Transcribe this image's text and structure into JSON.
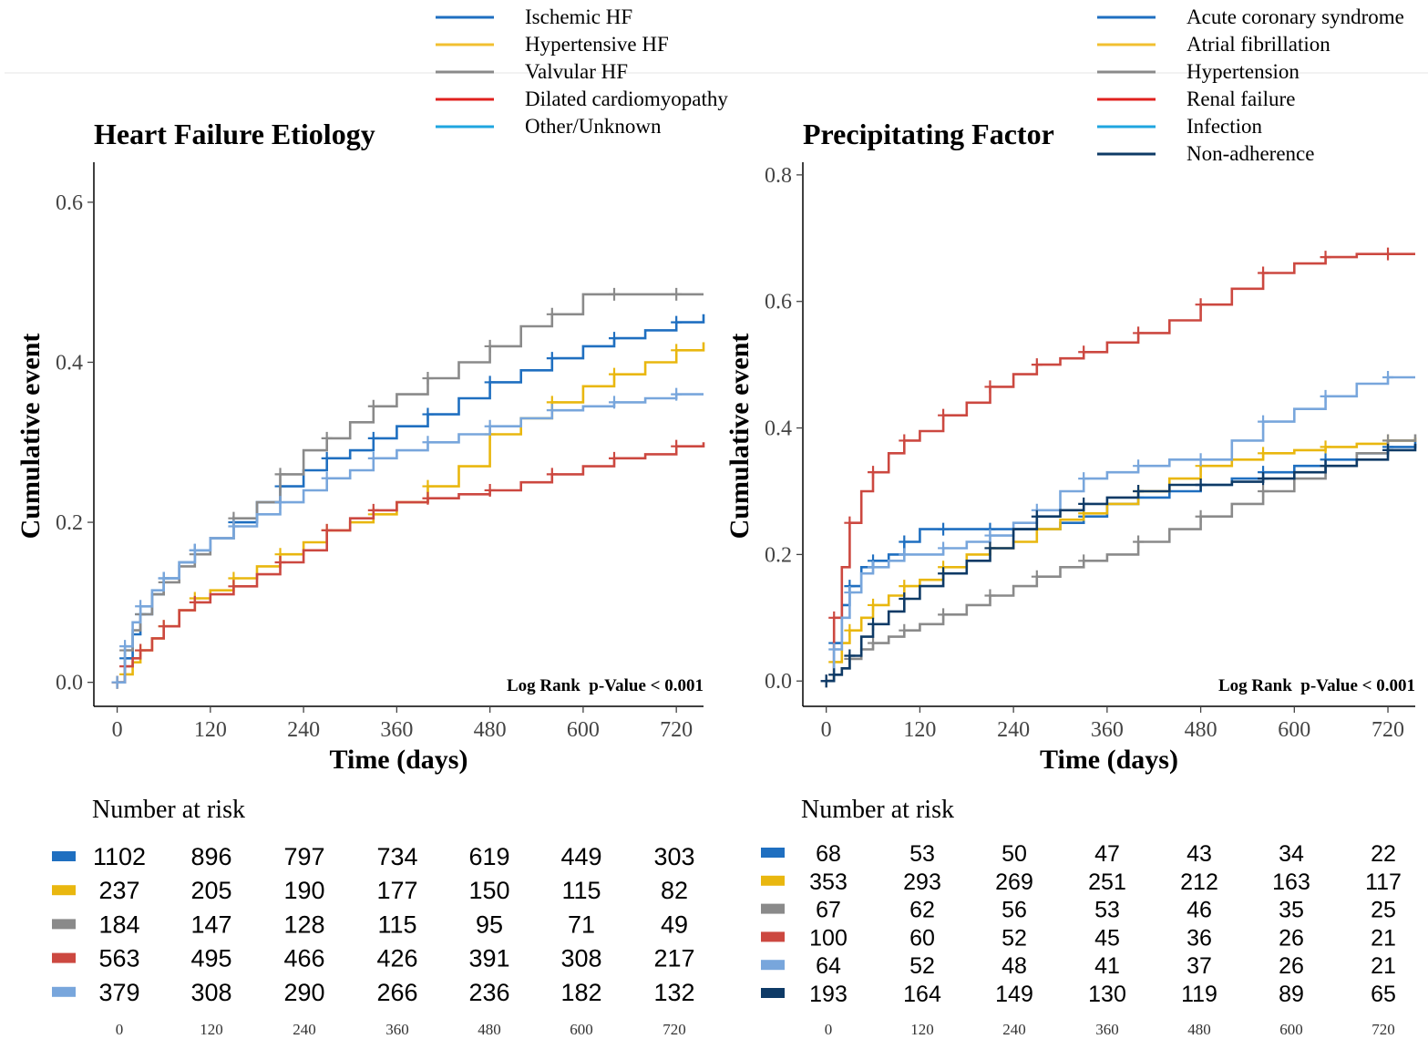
{
  "chart_data": [
    {
      "type": "line",
      "title": "Heart Failure Etiology",
      "xlabel": "Time (days)",
      "ylabel": "Cumulative event",
      "xlim": [
        -30,
        755
      ],
      "ylim": [
        -0.03,
        0.65
      ],
      "x_ticks": [
        0,
        120,
        240,
        360,
        480,
        600,
        720
      ],
      "x_tick_labels": [
        "0",
        "120",
        "240",
        "360",
        "480",
        "600",
        "720"
      ],
      "y_ticks": [
        0.0,
        0.2,
        0.4,
        0.6
      ],
      "y_tick_labels": [
        "0.0",
        "0.2",
        "0.4",
        "0.6"
      ],
      "annotation": "Log Rank  p-Value < 0.001",
      "legend_position": "top",
      "series": [
        {
          "name": "Ischemic HF",
          "color": "#1f6fc0",
          "legend_color": "#1f6fc0",
          "x": [
            0,
            10,
            20,
            30,
            45,
            60,
            80,
            100,
            120,
            150,
            180,
            210,
            240,
            270,
            300,
            330,
            360,
            400,
            440,
            480,
            520,
            560,
            600,
            640,
            680,
            720,
            755
          ],
          "y": [
            0,
            0.03,
            0.06,
            0.085,
            0.11,
            0.13,
            0.15,
            0.165,
            0.18,
            0.2,
            0.225,
            0.245,
            0.265,
            0.28,
            0.29,
            0.305,
            0.32,
            0.335,
            0.355,
            0.375,
            0.39,
            0.405,
            0.42,
            0.43,
            0.44,
            0.45,
            0.46
          ]
        },
        {
          "name": "Hypertensive HF",
          "color": "#e9b70f",
          "legend_color": "#f2c030",
          "x": [
            0,
            10,
            20,
            30,
            45,
            60,
            80,
            100,
            120,
            150,
            180,
            210,
            240,
            270,
            300,
            330,
            360,
            400,
            440,
            480,
            520,
            560,
            600,
            640,
            680,
            720,
            755
          ],
          "y": [
            0,
            0.01,
            0.025,
            0.04,
            0.055,
            0.07,
            0.09,
            0.105,
            0.115,
            0.13,
            0.145,
            0.16,
            0.175,
            0.19,
            0.2,
            0.21,
            0.225,
            0.245,
            0.27,
            0.31,
            0.33,
            0.35,
            0.37,
            0.385,
            0.4,
            0.415,
            0.425
          ]
        },
        {
          "name": "Valvular HF",
          "color": "#8a8a8a",
          "legend_color": "#8a8a8a",
          "x": [
            0,
            10,
            20,
            30,
            45,
            60,
            80,
            100,
            120,
            150,
            180,
            210,
            240,
            270,
            300,
            330,
            360,
            400,
            440,
            480,
            520,
            560,
            600,
            640,
            680,
            720,
            755
          ],
          "y": [
            0,
            0.04,
            0.065,
            0.085,
            0.11,
            0.125,
            0.145,
            0.16,
            0.18,
            0.205,
            0.225,
            0.26,
            0.29,
            0.305,
            0.325,
            0.345,
            0.36,
            0.38,
            0.4,
            0.42,
            0.445,
            0.46,
            0.485,
            0.485,
            0.485,
            0.485,
            0.485
          ]
        },
        {
          "name": "Dilated cardiomyopathy",
          "color": "#cc4840",
          "legend_color": "#e0211e",
          "x": [
            0,
            10,
            20,
            30,
            45,
            60,
            80,
            100,
            120,
            150,
            180,
            210,
            240,
            270,
            300,
            330,
            360,
            400,
            440,
            480,
            520,
            560,
            600,
            640,
            680,
            720,
            755
          ],
          "y": [
            0,
            0.02,
            0.03,
            0.04,
            0.055,
            0.07,
            0.09,
            0.1,
            0.11,
            0.12,
            0.135,
            0.15,
            0.165,
            0.19,
            0.205,
            0.215,
            0.225,
            0.23,
            0.235,
            0.24,
            0.25,
            0.26,
            0.27,
            0.28,
            0.285,
            0.295,
            0.3
          ]
        },
        {
          "name": "Other/Unknown",
          "color": "#78a6dc",
          "legend_color": "#1fa6e0",
          "x": [
            0,
            10,
            20,
            30,
            45,
            60,
            80,
            100,
            120,
            150,
            180,
            210,
            240,
            270,
            300,
            330,
            360,
            400,
            440,
            480,
            520,
            560,
            600,
            640,
            680,
            720,
            755
          ],
          "y": [
            0,
            0.045,
            0.075,
            0.095,
            0.115,
            0.13,
            0.15,
            0.165,
            0.18,
            0.195,
            0.21,
            0.225,
            0.24,
            0.255,
            0.265,
            0.28,
            0.29,
            0.3,
            0.31,
            0.32,
            0.33,
            0.34,
            0.345,
            0.35,
            0.355,
            0.36,
            0.36
          ]
        }
      ],
      "risk_table": {
        "title": "Number at risk",
        "times": [
          "0",
          "120",
          "240",
          "360",
          "480",
          "600",
          "720"
        ],
        "rows": [
          {
            "color": "#1f6fc0",
            "values": [
              "1102",
              "896",
              "797",
              "734",
              "619",
              "449",
              "303"
            ]
          },
          {
            "color": "#e9b70f",
            "values": [
              "237",
              "205",
              "190",
              "177",
              "150",
              "115",
              "82"
            ]
          },
          {
            "color": "#8a8a8a",
            "values": [
              "184",
              "147",
              "128",
              "115",
              "95",
              "71",
              "49"
            ]
          },
          {
            "color": "#cc4840",
            "values": [
              "563",
              "495",
              "466",
              "426",
              "391",
              "308",
              "217"
            ]
          },
          {
            "color": "#78a6dc",
            "values": [
              "379",
              "308",
              "290",
              "266",
              "236",
              "182",
              "132"
            ]
          }
        ]
      }
    },
    {
      "type": "line",
      "title": "Precipitating Factor",
      "xlabel": "Time (days)",
      "ylabel": "Cumulative event",
      "xlim": [
        -30,
        755
      ],
      "ylim": [
        -0.04,
        0.82
      ],
      "x_ticks": [
        0,
        120,
        240,
        360,
        480,
        600,
        720
      ],
      "x_tick_labels": [
        "0",
        "120",
        "240",
        "360",
        "480",
        "600",
        "720"
      ],
      "y_ticks": [
        0.0,
        0.2,
        0.4,
        0.6,
        0.8
      ],
      "y_tick_labels": [
        "0.0",
        "0.2",
        "0.4",
        "0.6",
        "0.8"
      ],
      "annotation": "Log Rank  p-Value < 0.001",
      "legend_position": "top-right",
      "series": [
        {
          "name": "Acute coronary syndrome",
          "color": "#1f6fc0",
          "legend_color": "#1f6fc0",
          "x": [
            0,
            10,
            20,
            30,
            45,
            60,
            80,
            100,
            120,
            150,
            180,
            210,
            240,
            270,
            300,
            330,
            360,
            400,
            440,
            480,
            520,
            560,
            600,
            640,
            680,
            720,
            755
          ],
          "y": [
            0,
            0.06,
            0.12,
            0.15,
            0.18,
            0.19,
            0.2,
            0.22,
            0.24,
            0.24,
            0.24,
            0.24,
            0.24,
            0.24,
            0.25,
            0.26,
            0.28,
            0.29,
            0.3,
            0.31,
            0.32,
            0.33,
            0.34,
            0.35,
            0.36,
            0.37,
            0.38
          ]
        },
        {
          "name": "Atrial fibrillation",
          "color": "#e9b70f",
          "legend_color": "#f2c030",
          "x": [
            0,
            10,
            20,
            30,
            45,
            60,
            80,
            100,
            120,
            150,
            180,
            210,
            240,
            270,
            300,
            330,
            360,
            400,
            440,
            480,
            520,
            560,
            600,
            640,
            680,
            720,
            755
          ],
          "y": [
            0,
            0.03,
            0.06,
            0.08,
            0.1,
            0.12,
            0.135,
            0.15,
            0.16,
            0.18,
            0.2,
            0.21,
            0.22,
            0.24,
            0.255,
            0.265,
            0.28,
            0.3,
            0.32,
            0.34,
            0.35,
            0.36,
            0.365,
            0.37,
            0.375,
            0.38,
            0.385
          ]
        },
        {
          "name": "Hypertension",
          "color": "#8a8a8a",
          "legend_color": "#8a8a8a",
          "x": [
            0,
            10,
            20,
            30,
            45,
            60,
            80,
            100,
            120,
            150,
            180,
            210,
            240,
            270,
            300,
            330,
            360,
            400,
            440,
            480,
            520,
            560,
            600,
            640,
            680,
            720,
            755
          ],
          "y": [
            0,
            0.01,
            0.02,
            0.035,
            0.05,
            0.06,
            0.07,
            0.08,
            0.09,
            0.105,
            0.12,
            0.135,
            0.15,
            0.165,
            0.18,
            0.19,
            0.2,
            0.22,
            0.24,
            0.26,
            0.28,
            0.3,
            0.32,
            0.34,
            0.36,
            0.38,
            0.39
          ]
        },
        {
          "name": "Renal failure",
          "color": "#cc4840",
          "legend_color": "#e0211e",
          "x": [
            0,
            10,
            20,
            30,
            45,
            60,
            80,
            100,
            120,
            150,
            180,
            210,
            240,
            270,
            300,
            330,
            360,
            400,
            440,
            480,
            520,
            560,
            600,
            640,
            680,
            720,
            755
          ],
          "y": [
            0,
            0.1,
            0.18,
            0.25,
            0.3,
            0.33,
            0.36,
            0.38,
            0.395,
            0.42,
            0.44,
            0.465,
            0.485,
            0.5,
            0.51,
            0.52,
            0.535,
            0.55,
            0.57,
            0.595,
            0.62,
            0.645,
            0.66,
            0.67,
            0.675,
            0.675,
            0.675
          ]
        },
        {
          "name": "Infection",
          "color": "#78a6dc",
          "legend_color": "#1fa6e0",
          "x": [
            0,
            10,
            20,
            30,
            45,
            60,
            80,
            100,
            120,
            150,
            180,
            210,
            240,
            270,
            300,
            330,
            360,
            400,
            440,
            480,
            520,
            560,
            600,
            640,
            680,
            720,
            755
          ],
          "y": [
            0,
            0.05,
            0.1,
            0.14,
            0.17,
            0.18,
            0.19,
            0.2,
            0.2,
            0.21,
            0.22,
            0.23,
            0.25,
            0.27,
            0.3,
            0.32,
            0.33,
            0.34,
            0.35,
            0.35,
            0.38,
            0.41,
            0.43,
            0.45,
            0.47,
            0.48,
            0.48
          ]
        },
        {
          "name": "Non-adherence",
          "color": "#0e3a66",
          "legend_color": "#0e3a66",
          "x": [
            0,
            10,
            20,
            30,
            45,
            60,
            80,
            100,
            120,
            150,
            180,
            210,
            240,
            270,
            300,
            330,
            360,
            400,
            440,
            480,
            520,
            560,
            600,
            640,
            680,
            720,
            755
          ],
          "y": [
            0,
            0.01,
            0.02,
            0.04,
            0.07,
            0.09,
            0.11,
            0.13,
            0.15,
            0.17,
            0.19,
            0.21,
            0.24,
            0.26,
            0.27,
            0.28,
            0.29,
            0.3,
            0.31,
            0.31,
            0.315,
            0.32,
            0.33,
            0.34,
            0.35,
            0.365,
            0.375
          ]
        }
      ],
      "risk_table": {
        "title": "Number at risk",
        "times": [
          "0",
          "120",
          "240",
          "360",
          "480",
          "600",
          "720"
        ],
        "rows": [
          {
            "color": "#1f6fc0",
            "values": [
              "68",
              "53",
              "50",
              "47",
              "43",
              "34",
              "22"
            ]
          },
          {
            "color": "#e9b70f",
            "values": [
              "353",
              "293",
              "269",
              "251",
              "212",
              "163",
              "117"
            ]
          },
          {
            "color": "#8a8a8a",
            "values": [
              "67",
              "62",
              "56",
              "53",
              "46",
              "35",
              "25"
            ]
          },
          {
            "color": "#cc4840",
            "values": [
              "100",
              "60",
              "52",
              "45",
              "36",
              "26",
              "21"
            ]
          },
          {
            "color": "#78a6dc",
            "values": [
              "64",
              "52",
              "48",
              "41",
              "37",
              "26",
              "21"
            ]
          },
          {
            "color": "#0e3a66",
            "values": [
              "193",
              "164",
              "149",
              "130",
              "119",
              "89",
              "65"
            ]
          }
        ]
      }
    }
  ]
}
